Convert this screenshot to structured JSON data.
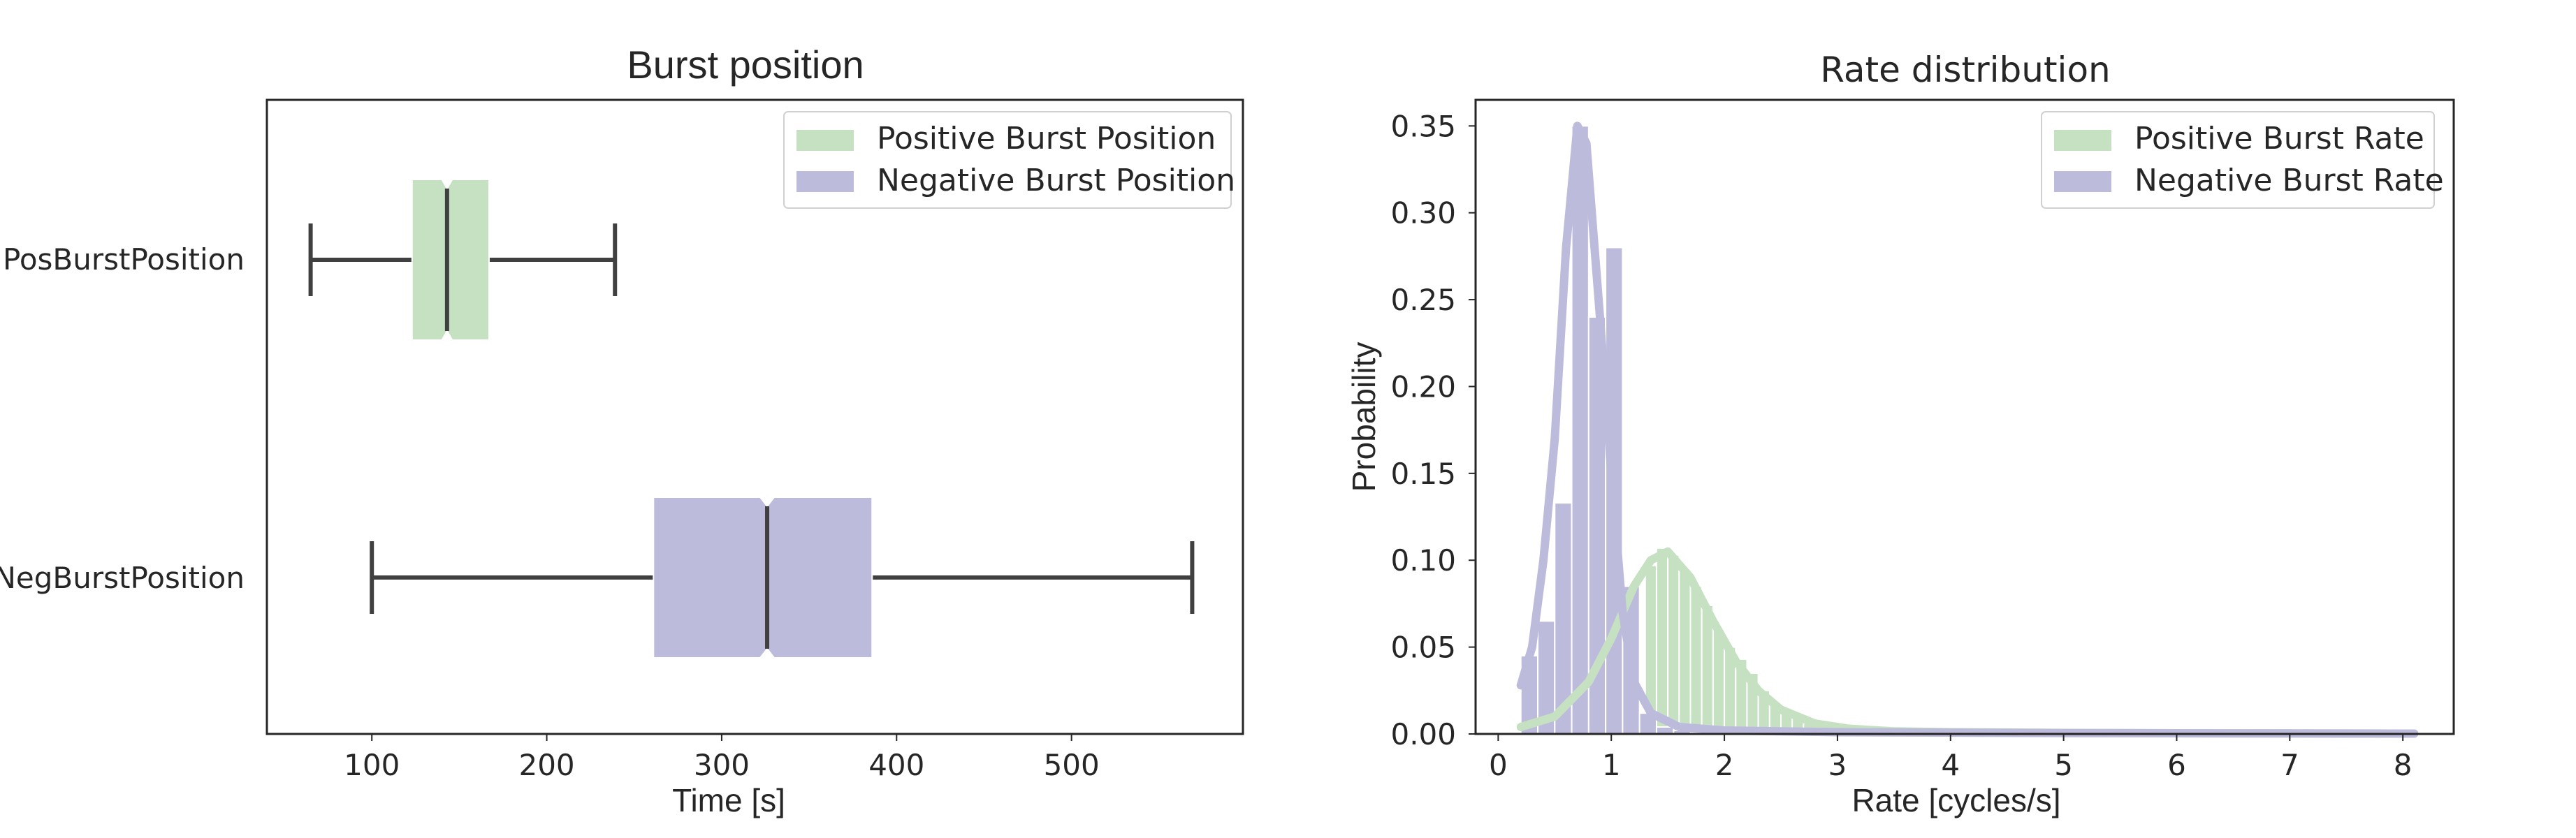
{
  "colors": {
    "positive": "#c5e1c2",
    "negative": "#bdbbdc",
    "whisker": "#404040",
    "axes": "#262626"
  },
  "chart_data": [
    {
      "type": "boxplot",
      "title": "Burst position",
      "xlabel": "Time [s]",
      "ylabel": "",
      "xlim": [
        40,
        598
      ],
      "xticks": [
        100,
        200,
        300,
        400,
        500
      ],
      "orientation": "horizontal",
      "notched": true,
      "grid": false,
      "legend": {
        "placement": "top-right",
        "entries": [
          "Positive Burst Position",
          "Negative Burst Position"
        ]
      },
      "series": [
        {
          "name": "PosBurstPosition",
          "whisker_low": 65,
          "q1": 123,
          "notch_low": 140,
          "median": 143,
          "notch_high": 146,
          "q3": 167,
          "whisker_high": 239
        },
        {
          "name": "NegBurstPosition",
          "whisker_low": 100,
          "q1": 261,
          "notch_low": 322,
          "median": 326,
          "notch_high": 330,
          "q3": 386,
          "whisker_high": 569
        }
      ]
    },
    {
      "type": "histogram",
      "title": "Rate distribution",
      "xlabel": "Rate [cycles/s]",
      "ylabel": "Probability",
      "xlim": [
        -0.2,
        8.45
      ],
      "ylim": [
        0,
        0.365
      ],
      "xticks": [
        0,
        1,
        2,
        3,
        4,
        5,
        6,
        7,
        8
      ],
      "yticks": [
        0.0,
        0.05,
        0.1,
        0.15,
        0.2,
        0.25,
        0.3,
        0.35
      ],
      "grid": false,
      "legend": {
        "placement": "top-right",
        "entries": [
          "Positive Burst Rate",
          "Negative Burst Rate"
        ]
      },
      "series": [
        {
          "name": "Negative Burst Rate",
          "bin_width": 0.15,
          "bins": [
            [
              0.2,
              0.045
            ],
            [
              0.35,
              0.065
            ],
            [
              0.5,
              0.133
            ],
            [
              0.65,
              0.35
            ],
            [
              0.8,
              0.24
            ],
            [
              0.95,
              0.28
            ],
            [
              1.1,
              0.085
            ],
            [
              1.25,
              0.012
            ],
            [
              1.4,
              0.004
            ],
            [
              1.55,
              0.002
            ],
            [
              1.7,
              0.001
            ]
          ],
          "kde": [
            [
              0.2,
              0.028
            ],
            [
              0.3,
              0.05
            ],
            [
              0.4,
              0.1
            ],
            [
              0.5,
              0.17
            ],
            [
              0.6,
              0.28
            ],
            [
              0.7,
              0.35
            ],
            [
              0.78,
              0.34
            ],
            [
              0.9,
              0.24
            ],
            [
              1.0,
              0.15
            ],
            [
              1.1,
              0.07
            ],
            [
              1.2,
              0.03
            ],
            [
              1.35,
              0.012
            ],
            [
              1.6,
              0.004
            ],
            [
              2.0,
              0.002
            ],
            [
              3.0,
              0.001
            ],
            [
              5.0,
              0.0005
            ],
            [
              8.1,
              0.0002
            ]
          ]
        },
        {
          "name": "Positive Burst Rate",
          "bin_width": 0.1,
          "bins": [
            [
              1.3,
              0.097
            ],
            [
              1.4,
              0.107
            ],
            [
              1.5,
              0.103
            ],
            [
              1.6,
              0.095
            ],
            [
              1.7,
              0.085
            ],
            [
              1.8,
              0.074
            ],
            [
              1.9,
              0.06
            ],
            [
              2.0,
              0.05
            ],
            [
              2.1,
              0.043
            ],
            [
              2.2,
              0.035
            ],
            [
              2.3,
              0.025
            ],
            [
              2.4,
              0.018
            ],
            [
              2.5,
              0.012
            ],
            [
              2.6,
              0.009
            ],
            [
              2.7,
              0.006
            ],
            [
              2.8,
              0.004
            ],
            [
              2.9,
              0.003
            ],
            [
              3.0,
              0.002
            ],
            [
              3.1,
              0.002
            ],
            [
              3.2,
              0.0015
            ],
            [
              3.3,
              0.0012
            ],
            [
              3.4,
              0.001
            ],
            [
              3.5,
              0.001
            ],
            [
              3.6,
              0.0008
            ],
            [
              3.7,
              0.0008
            ],
            [
              3.8,
              0.0007
            ],
            [
              3.9,
              0.0006
            ],
            [
              4.0,
              0.0005
            ]
          ],
          "kde": [
            [
              0.2,
              0.004
            ],
            [
              0.5,
              0.01
            ],
            [
              0.8,
              0.03
            ],
            [
              1.0,
              0.055
            ],
            [
              1.2,
              0.085
            ],
            [
              1.35,
              0.1
            ],
            [
              1.5,
              0.105
            ],
            [
              1.7,
              0.09
            ],
            [
              1.9,
              0.065
            ],
            [
              2.1,
              0.042
            ],
            [
              2.3,
              0.025
            ],
            [
              2.5,
              0.014
            ],
            [
              2.8,
              0.006
            ],
            [
              3.1,
              0.003
            ],
            [
              3.5,
              0.0015
            ],
            [
              4.0,
              0.001
            ],
            [
              5.0,
              0.0006
            ],
            [
              6.0,
              0.0004
            ],
            [
              7.0,
              0.0003
            ],
            [
              8.1,
              0.0002
            ]
          ]
        }
      ]
    }
  ]
}
